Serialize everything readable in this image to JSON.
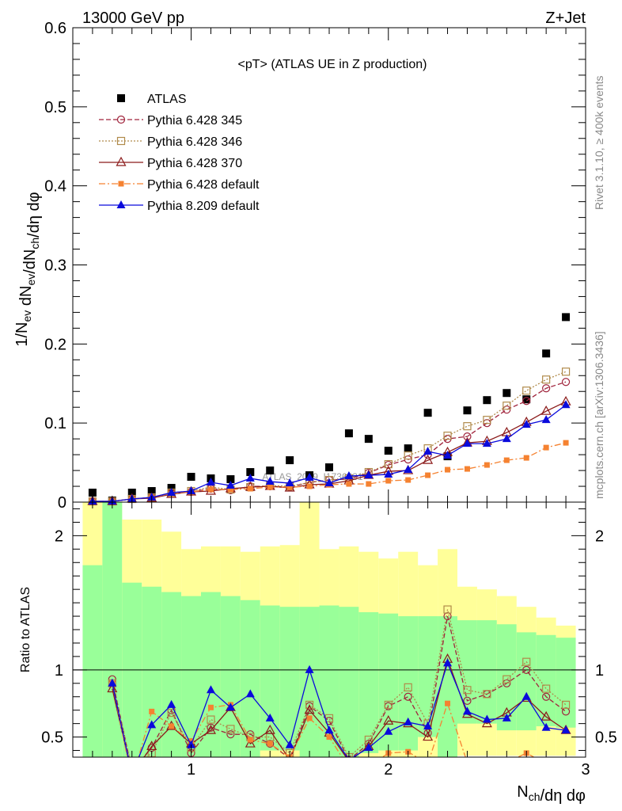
{
  "header": {
    "left": "13000 GeV pp",
    "right": "Z+Jet"
  },
  "side_labels": {
    "rivet": "Rivet 3.1.10, ≥ 400k events",
    "mcplots": "mcplots.cern.ch [arXiv:1306.3436]"
  },
  "watermark": "ATLAS_2019_I1736531",
  "colors": {
    "ATLAS": "#000000",
    "p345": "#a0243c",
    "p346": "#b08a4a",
    "p370": "#8b1a1a",
    "p6def": "#f58231",
    "p8": "#0a0adc",
    "band_green": "#99ff99",
    "band_yellow": "#ffff99"
  },
  "chart_data": [
    {
      "type": "scatter",
      "panel": "main",
      "title": "<pT> (ATLAS UE in Z production)",
      "xlabel": "N_ch/dη dφ",
      "ylabel": "1/N_ev dN_ev/dN_ch/dη dφ",
      "xlim": [
        0.4,
        3.0
      ],
      "ylim": [
        0,
        0.6
      ],
      "yticks": [
        0,
        0.1,
        0.2,
        0.3,
        0.4,
        0.5,
        0.6
      ],
      "ytick_labels": [
        "0",
        "0.1",
        "0.2",
        "0.3",
        "0.4",
        "0.5",
        "0.6"
      ],
      "legend_position": "top-left",
      "x": [
        0.5,
        0.6,
        0.7,
        0.8,
        0.9,
        1.0,
        1.1,
        1.2,
        1.3,
        1.4,
        1.5,
        1.6,
        1.7,
        1.8,
        1.9,
        2.0,
        2.1,
        2.2,
        2.3,
        2.4,
        2.5,
        2.6,
        2.7,
        2.8,
        2.9
      ],
      "series": [
        {
          "name": "ATLAS",
          "key": "ATLAS",
          "marker": "square-filled",
          "line": "none",
          "values": [
            0.012,
            0.002,
            0.012,
            0.014,
            0.018,
            0.032,
            0.03,
            0.029,
            0.038,
            0.04,
            0.053,
            0.034,
            0.044,
            0.087,
            0.08,
            0.065,
            0.068,
            0.113,
            0.058,
            0.116,
            0.129,
            0.138,
            0.13,
            0.188,
            0.234
          ]
        },
        {
          "name": "Pythia 6.428 345",
          "key": "p345",
          "marker": "circle-open",
          "line": "dashed",
          "values": [
            0.001,
            0.001,
            0.004,
            0.006,
            0.012,
            0.013,
            0.017,
            0.015,
            0.02,
            0.02,
            0.019,
            0.025,
            0.028,
            0.029,
            0.037,
            0.047,
            0.054,
            0.06,
            0.08,
            0.083,
            0.1,
            0.117,
            0.128,
            0.144,
            0.152
          ]
        },
        {
          "name": "Pythia 6.428 346",
          "key": "p346",
          "marker": "square-open",
          "line": "dotted",
          "values": [
            0.001,
            0.001,
            0.004,
            0.006,
            0.012,
            0.014,
            0.019,
            0.016,
            0.019,
            0.021,
            0.02,
            0.025,
            0.028,
            0.03,
            0.038,
            0.048,
            0.059,
            0.068,
            0.084,
            0.096,
            0.104,
            0.122,
            0.141,
            0.155,
            0.165
          ]
        },
        {
          "name": "Pythia 6.428 370",
          "key": "p370",
          "marker": "triangle-open",
          "line": "solid",
          "values": [
            0.001,
            0.001,
            0.004,
            0.005,
            0.01,
            0.013,
            0.014,
            0.017,
            0.019,
            0.02,
            0.018,
            0.022,
            0.023,
            0.027,
            0.034,
            0.039,
            0.04,
            0.053,
            0.063,
            0.075,
            0.077,
            0.088,
            0.101,
            0.115,
            0.127
          ]
        },
        {
          "name": "Pythia 6.428 default",
          "key": "p6def",
          "marker": "square-filled-small",
          "line": "dashdot",
          "values": [
            0.001,
            0.001,
            0.004,
            0.006,
            0.011,
            0.013,
            0.016,
            0.016,
            0.017,
            0.019,
            0.019,
            0.02,
            0.022,
            0.023,
            0.023,
            0.027,
            0.028,
            0.034,
            0.041,
            0.042,
            0.047,
            0.053,
            0.056,
            0.069,
            0.075
          ]
        },
        {
          "name": "Pythia 8.209 default",
          "key": "p8",
          "marker": "triangle-filled",
          "line": "solid",
          "values": [
            0.001,
            0.001,
            0.004,
            0.006,
            0.012,
            0.014,
            0.025,
            0.021,
            0.03,
            0.026,
            0.024,
            0.031,
            0.024,
            0.033,
            0.034,
            0.035,
            0.041,
            0.064,
            0.059,
            0.074,
            0.074,
            0.08,
            0.098,
            0.104,
            0.123
          ]
        }
      ]
    },
    {
      "type": "line",
      "panel": "ratio",
      "xlabel": "N_ch/dη dφ",
      "ylabel": "Ratio to ATLAS",
      "xlim": [
        0.4,
        3.0
      ],
      "ylim": [
        0.35,
        2.25
      ],
      "yticks": [
        0.5,
        1,
        2
      ],
      "ytick_labels": [
        "0.5",
        "1",
        "2"
      ],
      "xticks": [
        1,
        2,
        3
      ],
      "xtick_labels": [
        "1",
        "2",
        "3"
      ],
      "reference_line": 1,
      "band_edges": [
        0.45,
        0.55,
        0.65,
        0.75,
        0.85,
        0.95,
        1.05,
        1.15,
        1.25,
        1.35,
        1.45,
        1.55,
        1.65,
        1.75,
        1.85,
        1.95,
        2.05,
        2.15,
        2.25,
        2.35,
        2.45,
        2.55,
        2.65,
        2.75,
        2.85,
        2.95
      ],
      "band_green": [
        [
          0.0,
          1.78
        ],
        [
          0.0,
          2.3
        ],
        [
          0.15,
          1.65
        ],
        [
          0.25,
          1.62
        ],
        [
          0.28,
          1.58
        ],
        [
          0.15,
          1.55
        ],
        [
          0.32,
          1.58
        ],
        [
          0.32,
          1.55
        ],
        [
          0.32,
          1.52
        ],
        [
          0.4,
          1.48
        ],
        [
          0.4,
          1.47
        ],
        [
          0.35,
          1.47
        ],
        [
          0.3,
          1.48
        ],
        [
          0.35,
          1.47
        ],
        [
          0.38,
          1.43
        ],
        [
          0.4,
          1.42
        ],
        [
          0.4,
          1.4
        ],
        [
          0.5,
          1.4
        ],
        [
          0.25,
          1.4
        ],
        [
          0.6,
          1.37
        ],
        [
          0.6,
          1.37
        ],
        [
          0.55,
          1.34
        ],
        [
          0.55,
          1.28
        ],
        [
          0.58,
          1.26
        ],
        [
          0.57,
          1.24
        ]
      ],
      "band_yellow": [
        [
          0.0,
          2.3
        ],
        [
          0.0,
          2.3
        ],
        [
          0.0,
          2.12
        ],
        [
          0.0,
          2.12
        ],
        [
          0.0,
          2.03
        ],
        [
          0.0,
          1.9
        ],
        [
          0.0,
          1.92
        ],
        [
          0.0,
          1.92
        ],
        [
          0.0,
          1.88
        ],
        [
          0.0,
          1.92
        ],
        [
          0.0,
          1.93
        ],
        [
          0.0,
          2.3
        ],
        [
          0.0,
          1.9
        ],
        [
          0.0,
          1.92
        ],
        [
          0.0,
          1.88
        ],
        [
          0.0,
          1.83
        ],
        [
          0.0,
          1.88
        ],
        [
          0.0,
          1.78
        ],
        [
          0.0,
          1.9
        ],
        [
          0.36,
          1.62
        ],
        [
          0.36,
          1.6
        ],
        [
          0.36,
          1.55
        ],
        [
          0.36,
          1.47
        ],
        [
          0.36,
          1.39
        ],
        [
          0.36,
          1.33
        ]
      ],
      "x": [
        0.6,
        0.7,
        0.8,
        0.9,
        1.0,
        1.1,
        1.2,
        1.3,
        1.4,
        1.5,
        1.6,
        1.7,
        1.8,
        1.9,
        2.0,
        2.1,
        2.2,
        2.3,
        2.4,
        2.5,
        2.6,
        2.7,
        2.8,
        2.9
      ],
      "series": [
        {
          "name": "Pythia 6.428 345",
          "key": "p345",
          "marker": "circle-open",
          "line": "dashed",
          "values": [
            0.93,
            0.25,
            0.42,
            0.7,
            0.38,
            0.57,
            0.52,
            0.52,
            0.45,
            0.34,
            0.73,
            0.62,
            0.33,
            0.45,
            0.73,
            0.8,
            0.53,
            1.4,
            0.77,
            0.82,
            0.9,
            1.0,
            0.8,
            0.69
          ]
        },
        {
          "name": "Pythia 6.428 346",
          "key": "p346",
          "marker": "square-open",
          "line": "dotted",
          "values": [
            0.9,
            0.27,
            0.38,
            0.68,
            0.42,
            0.63,
            0.56,
            0.5,
            0.5,
            0.38,
            0.74,
            0.64,
            0.35,
            0.48,
            0.74,
            0.87,
            0.6,
            1.45,
            0.85,
            0.82,
            0.93,
            1.06,
            0.86,
            0.74
          ]
        },
        {
          "name": "Pythia 6.428 370",
          "key": "p370",
          "marker": "triangle-open",
          "line": "solid",
          "values": [
            0.86,
            0.22,
            0.43,
            0.58,
            0.45,
            0.55,
            0.72,
            0.45,
            0.55,
            0.33,
            0.7,
            0.53,
            0.32,
            0.43,
            0.62,
            0.6,
            0.5,
            1.08,
            0.67,
            0.6,
            0.68,
            0.79,
            0.65,
            0.55
          ]
        },
        {
          "name": "Pythia 6.428 default",
          "key": "p6def",
          "marker": "square-filled-small",
          "line": "dashdot",
          "values": [
            0.9,
            0.18,
            0.69,
            0.58,
            0.47,
            0.72,
            0.74,
            0.48,
            0.45,
            0.35,
            0.64,
            0.5,
            0.27,
            0.28,
            0.38,
            0.39,
            0.3,
            0.75,
            0.31,
            0.29,
            0.31,
            0.38,
            0.3,
            0.28
          ]
        },
        {
          "name": "Pythia 8.209 default",
          "key": "p8",
          "marker": "triangle-filled",
          "line": "solid",
          "values": [
            0.9,
            0.22,
            0.59,
            0.74,
            0.44,
            0.85,
            0.72,
            0.82,
            0.64,
            0.44,
            1.0,
            0.55,
            0.33,
            0.42,
            0.54,
            0.61,
            0.58,
            1.05,
            0.69,
            0.63,
            0.64,
            0.8,
            0.57,
            0.55
          ]
        }
      ]
    }
  ]
}
